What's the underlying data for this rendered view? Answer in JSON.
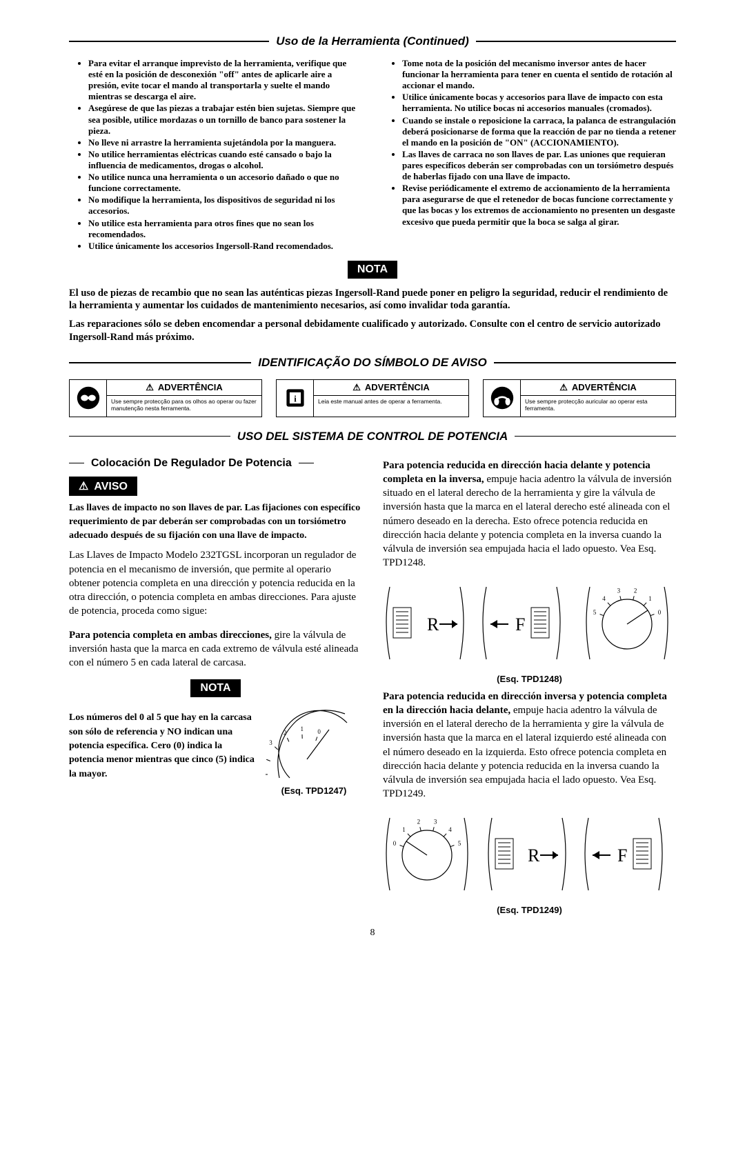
{
  "header": {
    "title": "Uso de la Herramienta (Continued)"
  },
  "bullets_left": [
    "Para evitar el arranque imprevisto de la herramienta, verifique que esté en la posición de desconexión \"off\" antes de aplicarle aire a presión, evite tocar el mando al transportarla y suelte el mando mientras se descarga el aire.",
    "Asegúrese de que las piezas a trabajar estén bien sujetas. Siempre que sea posible, utilice mordazas o un tornillo de banco para sostener la pieza.",
    "No lleve ni arrastre la herramienta sujetándola por la manguera.",
    "No utilice herramientas eléctricas cuando esté cansado o bajo la influencia de medicamentos, drogas o alcohol.",
    "No utilice nunca una herramienta o un accesorio dañado o que no funcione correctamente.",
    "No modifique la herramienta, los dispositivos de seguridad ni los accesorios.",
    "No utilice esta herramienta para otros fines que no sean los recomendados.",
    "Utilice únicamente los accesorios Ingersoll-Rand recomendados."
  ],
  "bullets_right": [
    "Tome nota de la posición del mecanismo inversor antes de hacer funcionar la herramienta para tener en cuenta el sentido de rotación al accionar el mando.",
    "Utilice únicamente bocas y accesorios para llave de impacto con esta herramienta. No utilice bocas ni accesorios manuales (cromados).",
    "Cuando se instale o reposicione la carraca, la palanca de estrangulación deberá posicionarse de forma que la reacción de par no tienda a retener el mando en la posición de \"ON\" (ACCIONAMIENTO).",
    "Las llaves de carraca no son llaves de par. Las uniones que requieran pares específicos deberán ser comprobadas con un torsiómetro después de haberlas fijado con una llave de impacto.",
    "Revise periódicamente el extremo de accionamiento de la herramienta para asegurarse de que el retenedor de bocas funcione correctamente y que las bocas y los extremos de accionamiento no presenten un desgaste excesivo que pueda permitir que la boca se salga al girar."
  ],
  "nota_badge": "NOTA",
  "nota_p1": "El uso de piezas de recambio que no sean las auténticas piezas Ingersoll-Rand puede poner en peligro la seguridad, reducir el rendimiento de la herramienta y aumentar los cuidados de mantenimiento necesarios, así como invalidar toda garantía.",
  "nota_p2": "Las reparaciones sólo se deben encomendar a personal debidamente cualificado y autorizado. Consulte con el centro de servicio autorizado Ingersoll-Rand más próximo.",
  "ident_title": "IDENTIFICAÇÃO DO SÍMBOLO DE AVISO",
  "warn_title": "ADVERTÊNCIA",
  "warn_boxes": [
    {
      "icon": "goggles",
      "desc": "Use sempre protecção para os olhos ao operar ou fazer manutenção nesta ferramenta."
    },
    {
      "icon": "manual",
      "desc": "Leia este manual antes de operar a ferramenta."
    },
    {
      "icon": "earmuff",
      "desc": "Use sempre protecção auricular ao operar esta ferramenta."
    }
  ],
  "uso_title": "USO DEL SISTEMA DE CONTROL DE POTENCIA",
  "colocacion_title": "Colocación De Regulador De Potencia",
  "aviso_badge": "AVISO",
  "aviso_p": "Las llaves de impacto no son llaves de par. Las fijaciones con específico requerimiento de par deberán ser comprobadas con un torsiómetro adecuado después de su fijación con una llave de impacto.",
  "p_llaves": "Las Llaves de Impacto Modelo 232TGSL incorporan un regulador de potencia en el mecanismo de inversión, que permite al operario obtener potencia completa en una dirección y potencia reducida en la otra dirección, o potencia completa en ambas direcciones. Para ajuste de potencia, proceda como sigue:",
  "p_full_lead": "Para potencia completa en ambas direcciones,",
  "p_full_rest": " gire la válvula de inversión hasta que la marca en cada extremo de válvula esté alineada con el número 5 en cada lateral de carcasa.",
  "nota2_p": "Los números del 0 al 5 que hay en la carcasa son sólo de referencia y NO indican una potencia específica. Cero (0) indica la potencia menor mientras que cinco (5) indica la mayor.",
  "esq1": "(Esq. TPD1247)",
  "p_red_fwd_lead": "Para potencia reducida en dirección hacia delante y potencia completa en la inversa,",
  "p_red_fwd_rest": " empuje hacia adentro la válvula de inversión situado en el lateral derecho de la herramienta y gire la válvula de inversión hasta que la marca en el lateral derecho esté alineada con el número deseado en la derecha. Esto ofrece potencia reducida en dirección hacia delante y potencia completa en la inversa cuando la válvula de inversión sea empujada hacia el lado opuesto. Vea Esq. TPD1248.",
  "esq2": "(Esq. TPD1248)",
  "p_red_rev_lead": "Para potencia reducida en dirección inversa y potencia completa en la dirección hacia delante,",
  "p_red_rev_rest": " empuje hacia adentro la válvula de inversión en el lateral derecho de la herramienta y gire la válvula de inversión hasta que la marca en el lateral izquierdo esté alineada con el número deseado en la izquierda. Esto ofrece potencia completa en dirección hacia delante y potencia reducida en la inversa cuando la válvula de inversión sea empujada hacia el lado opuesto. Vea Esq. TPD1249.",
  "esq3": "(Esq. TPD1249)",
  "pageNumber": "8",
  "dial_numbers": [
    "0",
    "1",
    "2",
    "3",
    "4",
    "5"
  ],
  "rf_letters": {
    "r": "R",
    "f": "F"
  }
}
